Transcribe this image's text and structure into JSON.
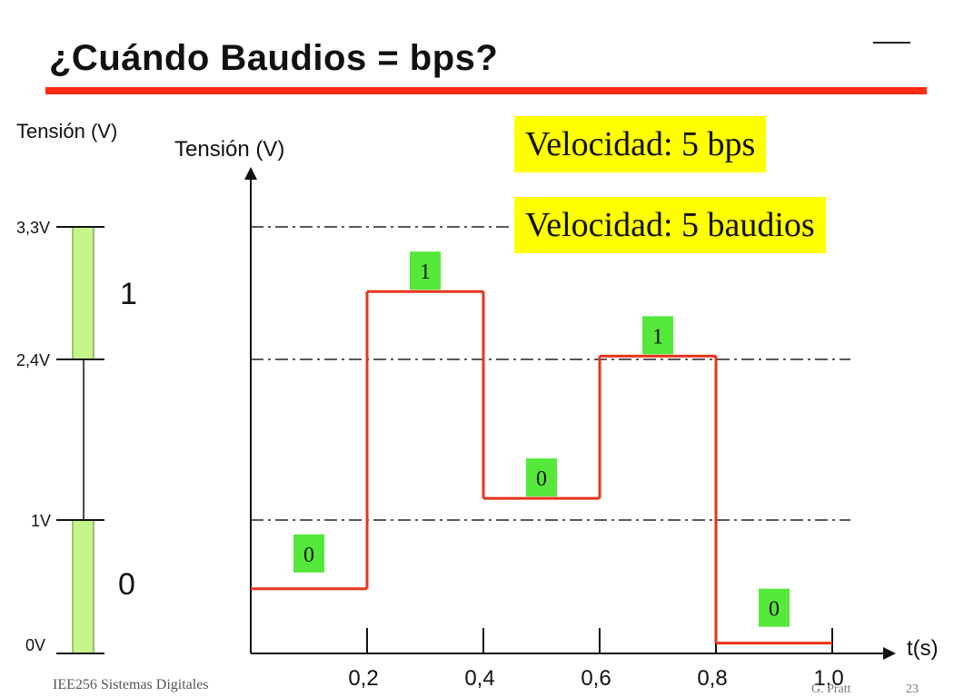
{
  "title": "¿Cuándo Baudios = bps?",
  "speed_bps": "Velocidad: 5 bps",
  "speed_baud": "Velocidad: 5 baudios",
  "footer": {
    "course": "IEE256 Sistemas Digitales",
    "author_partial": "G. Pratt",
    "page": "23"
  },
  "level_scale": {
    "axis_label": "Tensión (V)",
    "levels": [
      "3,3V",
      "2,4V",
      "1V",
      "0V"
    ],
    "logic_high": "1",
    "logic_low": "0",
    "colors": {
      "band": "#c6f58a",
      "band_border": "#4a8a2a"
    }
  },
  "chart_data": {
    "type": "line",
    "ylabel": "Tensión (V)",
    "xlabel": "t(s)",
    "x_ticks": [
      "0,2",
      "0,4",
      "0,6",
      "0,8",
      "1,0"
    ],
    "x_range": [
      0,
      1.0
    ],
    "step_signal": [
      {
        "t_start": 0.0,
        "t_end": 0.2,
        "level": 0.5,
        "bit": "0"
      },
      {
        "t_start": 0.2,
        "t_end": 0.4,
        "level": 2.8,
        "bit": "1"
      },
      {
        "t_start": 0.4,
        "t_end": 0.6,
        "level": 1.2,
        "bit": "0"
      },
      {
        "t_start": 0.6,
        "t_end": 0.8,
        "level": 2.3,
        "bit": "1"
      },
      {
        "t_start": 0.8,
        "t_end": 1.0,
        "level": 0.08,
        "bit": "0"
      }
    ],
    "reference_lines": [
      3.3,
      2.4,
      1.0
    ],
    "colors": {
      "signal": "#e8341c",
      "bit_label_bg": "#55e83a"
    }
  }
}
